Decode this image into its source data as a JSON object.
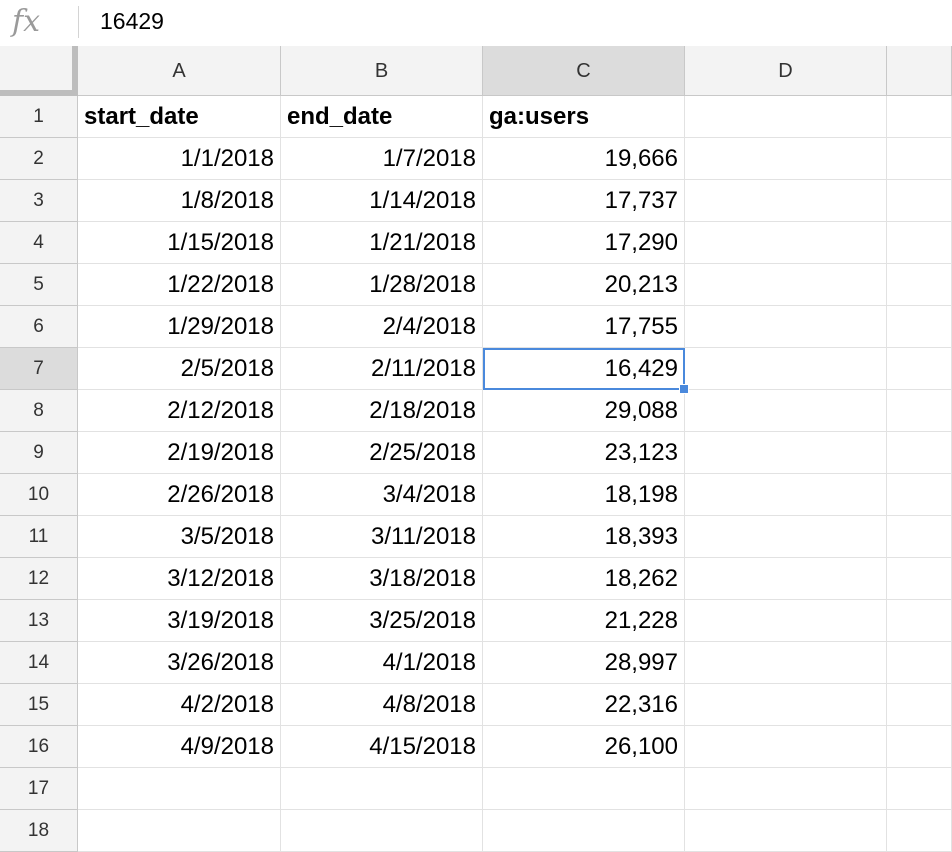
{
  "formula_bar": {
    "icon": "fx-icon",
    "icon_text": "fx",
    "value": "16429"
  },
  "columns": [
    "A",
    "B",
    "C",
    "D",
    ""
  ],
  "selected": {
    "row": 7,
    "col": "C"
  },
  "header_row": [
    "start_date",
    "end_date",
    "ga:users",
    ""
  ],
  "rows": [
    {
      "n": "2",
      "a": "1/1/2018",
      "b": "1/7/2018",
      "c": "19,666"
    },
    {
      "n": "3",
      "a": "1/8/2018",
      "b": "1/14/2018",
      "c": "17,737"
    },
    {
      "n": "4",
      "a": "1/15/2018",
      "b": "1/21/2018",
      "c": "17,290"
    },
    {
      "n": "5",
      "a": "1/22/2018",
      "b": "1/28/2018",
      "c": "20,213"
    },
    {
      "n": "6",
      "a": "1/29/2018",
      "b": "2/4/2018",
      "c": "17,755"
    },
    {
      "n": "7",
      "a": "2/5/2018",
      "b": "2/11/2018",
      "c": "16,429"
    },
    {
      "n": "8",
      "a": "2/12/2018",
      "b": "2/18/2018",
      "c": "29,088"
    },
    {
      "n": "9",
      "a": "2/19/2018",
      "b": "2/25/2018",
      "c": "23,123"
    },
    {
      "n": "10",
      "a": "2/26/2018",
      "b": "3/4/2018",
      "c": "18,198"
    },
    {
      "n": "11",
      "a": "3/5/2018",
      "b": "3/11/2018",
      "c": "18,393"
    },
    {
      "n": "12",
      "a": "3/12/2018",
      "b": "3/18/2018",
      "c": "18,262"
    },
    {
      "n": "13",
      "a": "3/19/2018",
      "b": "3/25/2018",
      "c": "21,228"
    },
    {
      "n": "14",
      "a": "3/26/2018",
      "b": "4/1/2018",
      "c": "28,997"
    },
    {
      "n": "15",
      "a": "4/2/2018",
      "b": "4/8/2018",
      "c": "22,316"
    },
    {
      "n": "16",
      "a": "4/9/2018",
      "b": "4/15/2018",
      "c": "26,100"
    },
    {
      "n": "17",
      "a": "",
      "b": "",
      "c": ""
    },
    {
      "n": "18",
      "a": "",
      "b": "",
      "c": ""
    }
  ],
  "colors": {
    "selection": "#4a89dc",
    "header_bg": "#f3f3f3",
    "header_selected_bg": "#dcdcdc"
  }
}
